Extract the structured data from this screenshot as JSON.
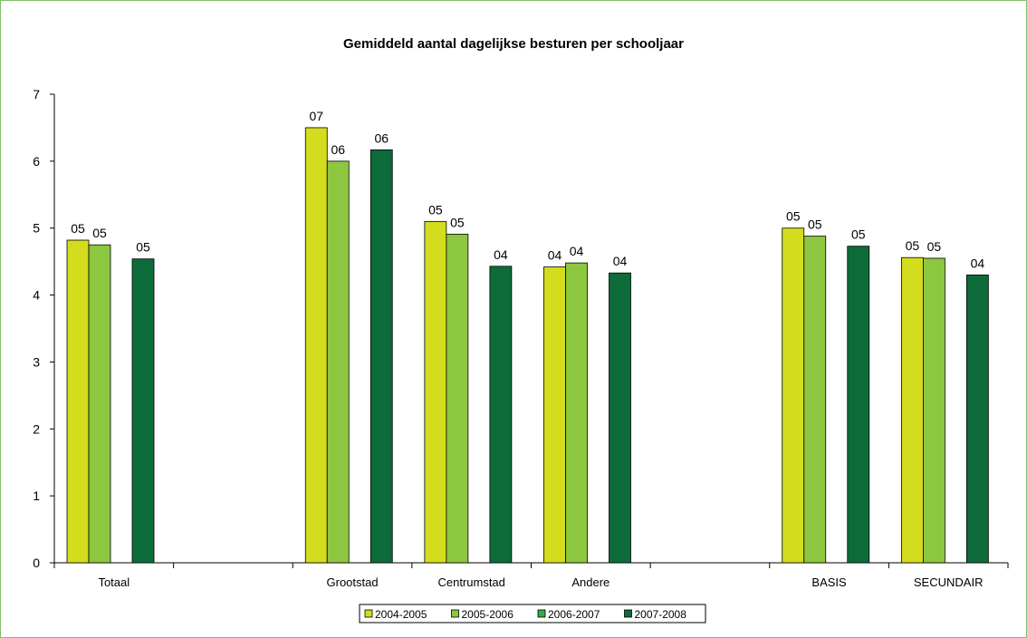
{
  "chart_data": {
    "type": "bar",
    "title": "Gemiddeld aantal dagelijkse besturen per schooljaar",
    "xlabel": "",
    "ylabel": "",
    "ylim": [
      0,
      7
    ],
    "yticks": [
      "0",
      "1",
      "2",
      "3",
      "4",
      "5",
      "6",
      "7"
    ],
    "categories": [
      "Totaal",
      "",
      "Grootstad",
      "Centrumstad",
      "Andere",
      "",
      "BASIS",
      "SECUNDAIR"
    ],
    "series": [
      {
        "name": "2004-2005",
        "color": "#d4dc1e",
        "values": [
          4.82,
          null,
          6.5,
          5.1,
          4.42,
          null,
          5.0,
          4.56
        ],
        "labels": [
          "05",
          "",
          "07",
          "05",
          "04",
          "",
          "05",
          "05"
        ]
      },
      {
        "name": "2005-2006",
        "color": "#8dc63f",
        "values": [
          4.75,
          null,
          6.0,
          4.91,
          4.48,
          null,
          4.88,
          4.55
        ],
        "labels": [
          "05",
          "",
          "06",
          "05",
          "04",
          "",
          "05",
          "05"
        ]
      },
      {
        "name": "2006-2007",
        "color": "#3aa845",
        "values": [
          null,
          null,
          null,
          null,
          null,
          null,
          null,
          null
        ],
        "labels": [
          "",
          "",
          "",
          "",
          "",
          "",
          "",
          ""
        ]
      },
      {
        "name": "2007-2008",
        "color": "#0e6b3a",
        "values": [
          4.54,
          null,
          6.17,
          4.43,
          4.33,
          null,
          4.73,
          4.3
        ],
        "labels": [
          "05",
          "",
          "06",
          "04",
          "04",
          "",
          "05",
          "04"
        ]
      }
    ],
    "grid": false,
    "legend_position": "bottom-center"
  }
}
